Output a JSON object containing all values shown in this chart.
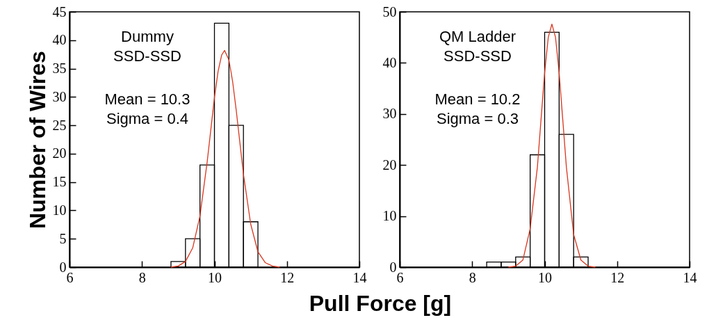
{
  "chart_data": [
    {
      "type": "histogram",
      "xlabel": "Pull Force [g]",
      "ylabel": "Number of Wires",
      "color": "#000000",
      "bins": [
        8.8,
        9.2,
        9.6,
        10.0,
        10.4,
        10.8,
        11.2
      ],
      "values": [
        1,
        5,
        18,
        43,
        25,
        8
      ],
      "series": [
        {
          "type": "line",
          "color": "#d9361e",
          "x": [
            8.8,
            9.0,
            9.2,
            9.4,
            9.6,
            9.8,
            10.0,
            10.1,
            10.2,
            10.28,
            10.4,
            10.5,
            10.6,
            10.8,
            11.0,
            11.2,
            11.4,
            11.6,
            11.8
          ],
          "values": [
            0,
            0.2,
            1.0,
            3.4,
            9.0,
            18.6,
            29.9,
            34.5,
            37.4,
            38.2,
            36.5,
            32.8,
            27.7,
            16.4,
            7.6,
            2.7,
            0.8,
            0.2,
            0
          ]
        }
      ],
      "xlim": [
        6,
        14
      ],
      "xticks": [
        6,
        8,
        10,
        12,
        14
      ],
      "ylim": [
        0,
        45
      ],
      "yticks": [
        0,
        5,
        10,
        15,
        20,
        25,
        30,
        35,
        40,
        45
      ],
      "grid": false,
      "marker": "none",
      "line_style": "solid",
      "annotations": [
        "Dummy",
        "SSD-SSD",
        "Mean = 10.3",
        "Sigma = 0.4"
      ]
    },
    {
      "type": "histogram",
      "color": "#000000",
      "bins": [
        8.4,
        8.8,
        9.2,
        9.6,
        10.0,
        10.4,
        10.8,
        11.2
      ],
      "values": [
        1,
        1,
        2,
        22,
        46,
        26,
        2
      ],
      "series": [
        {
          "type": "line",
          "color": "#d9361e",
          "x": [
            9.0,
            9.2,
            9.4,
            9.6,
            9.8,
            9.9,
            10.0,
            10.1,
            10.2,
            10.3,
            10.4,
            10.5,
            10.6,
            10.8,
            11.0,
            11.2,
            11.4
          ],
          "values": [
            0,
            0.2,
            1.4,
            7.5,
            19.6,
            28.9,
            38.1,
            45.0,
            47.6,
            45.0,
            38.1,
            28.9,
            19.6,
            6.4,
            1.4,
            0.2,
            0
          ]
        }
      ],
      "xlim": [
        6,
        14
      ],
      "xticks": [
        6,
        8,
        10,
        12,
        14
      ],
      "ylim": [
        0,
        50
      ],
      "yticks": [
        0,
        10,
        20,
        30,
        40,
        50
      ],
      "grid": false,
      "marker": "none",
      "line_style": "solid",
      "annotations": [
        "QM Ladder",
        "SSD-SSD",
        "Mean = 10.2",
        "Sigma = 0.3"
      ]
    }
  ]
}
